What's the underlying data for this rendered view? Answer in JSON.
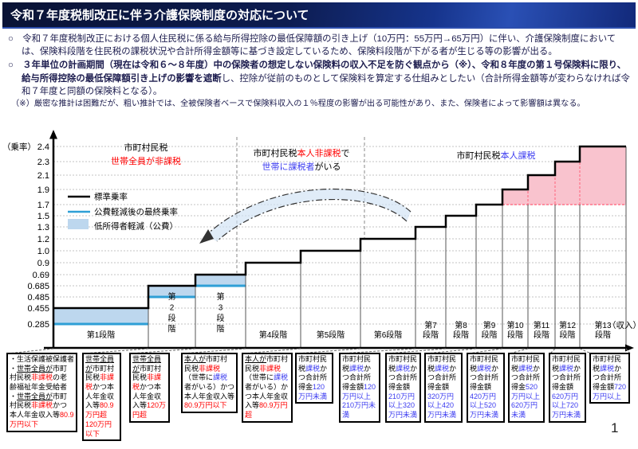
{
  "header": {
    "title": "令和７年度税制改正に伴う介護保険制度の対応について"
  },
  "intro": {
    "bullets": [
      {
        "marker": "○",
        "segments": [
          {
            "t": "令和７年度税制改正における個人住民税に係る給与所得控除の最低保障額の引き上げ（10万円：55万円→65万円）に伴い、介護保険制度においては、保険料段階を住民税の課税状況や合計所得金額等に基づき設定しているため、保険料段階が下がる者が生じる等の影響が出る。",
            "b": false
          }
        ]
      },
      {
        "marker": "○",
        "segments": [
          {
            "t": "３年単位の計画期間（現在は令和６～８年度）中の保険者の想定しない保険料の収入不足を防ぐ観点から（※）、令和８年度の第１号保険料に限り、給与所得控除の最低保障額引き上げの影響を遮断",
            "b": true
          },
          {
            "t": "し、控除が従前のものとして保険料を算定する仕組みとしたい（合計所得金額等が変わらなければ令和７年度と同額の保険料となる）。",
            "b": false
          }
        ]
      }
    ],
    "note": "（※）厳密な推計は困難だが、粗い推計では、全被保険者ベースで保険料収入の１％程度の影響が出る可能性があり、また、保険者によって影響額は異なる。"
  },
  "chart_data": {
    "type": "step",
    "y_axis_label": "（乗率）",
    "x_axis_label": "（収入）",
    "y_ticks": [
      "2.4",
      "2.3",
      "2.1",
      "1.9",
      "1.7",
      "1.5",
      "1.3",
      "1.2",
      "1.0",
      "0.9",
      "0.69",
      "0.685",
      "0.485",
      "0.455",
      "0.285"
    ],
    "legend": [
      {
        "label": "標準乗率",
        "swatch": "black-line"
      },
      {
        "label": "公費軽減後の最終乗率",
        "swatch": "blue-line"
      },
      {
        "label": "低所得者軽減（公費）",
        "swatch": "blue-fill"
      }
    ],
    "zones": [
      {
        "line1": [
          {
            "t": "市町村民税",
            "c": "k"
          }
        ],
        "line2": [
          {
            "t": "世帯全員が非課税",
            "c": "r"
          }
        ]
      },
      {
        "line1": [
          {
            "t": "市町村民税",
            "c": "k"
          },
          {
            "t": "本人非課税",
            "c": "r"
          },
          {
            "t": "で",
            "c": "k"
          }
        ],
        "line2": [
          {
            "t": "世帯に課税者",
            "c": "b"
          },
          {
            "t": "がいる",
            "c": "k"
          }
        ]
      },
      {
        "line1": [
          {
            "t": "市町村民税",
            "c": "k"
          },
          {
            "t": "本人課税",
            "c": "b"
          }
        ],
        "line2": []
      }
    ],
    "stages": [
      {
        "label": "第1段階",
        "standard_rate": "0.455",
        "reduced_rate": "0.285"
      },
      {
        "label": "第2段階",
        "standard_rate": "0.685",
        "reduced_rate": "0.485"
      },
      {
        "label": "第3段階",
        "standard_rate": "0.69",
        "reduced_rate": "0.685"
      },
      {
        "label": "第4段階",
        "standard_rate": "0.9"
      },
      {
        "label": "第5段階",
        "standard_rate": "1.0"
      },
      {
        "label": "第6段階",
        "standard_rate": "1.2"
      },
      {
        "label": "第7段階",
        "standard_rate": "1.3"
      },
      {
        "label": "第8段階",
        "standard_rate": "1.5"
      },
      {
        "label": "第9段階",
        "standard_rate": "1.7"
      },
      {
        "label": "第10段階",
        "standard_rate": "1.9",
        "highlighted": true
      },
      {
        "label": "第11段階",
        "standard_rate": "2.1",
        "highlighted": true
      },
      {
        "label": "第12段階",
        "standard_rate": "2.3",
        "highlighted": true
      },
      {
        "label": "第13段階",
        "standard_rate": "2.4",
        "highlighted": true
      }
    ],
    "colors": {
      "standard_line": "#000000",
      "reduced_line": "#2e9fd6",
      "reduction_fill": "#bdd7ee",
      "highlight_fill": "#f9c3ce",
      "highlight_dash": "#ff7388",
      "red_text": "#ff0000",
      "blue_text": "#3a3af0"
    }
  },
  "stage_boxes": [
    {
      "items": [
        [
          {
            "t": "・生活保護被保護者",
            "c": "k"
          }
        ],
        [
          {
            "t": "・",
            "c": "k"
          },
          {
            "t": "世帯全員が",
            "c": "u"
          },
          {
            "t": "市町村民税",
            "c": "k"
          },
          {
            "t": "非課税",
            "c": "r"
          },
          {
            "t": "の老齢福祉年金受給者",
            "c": "k"
          }
        ],
        [
          {
            "t": "・",
            "c": "k"
          },
          {
            "t": "世帯全員が",
            "c": "u"
          },
          {
            "t": "市町村民税",
            "c": "k"
          },
          {
            "t": "非課税",
            "c": "r"
          },
          {
            "t": "かつ本人年金収入等",
            "c": "k"
          },
          {
            "t": "80.9万円以下",
            "c": "r"
          }
        ]
      ]
    },
    {
      "items": [
        [
          {
            "t": "世帯全員が",
            "c": "u"
          },
          {
            "t": "市町村民税",
            "c": "k"
          },
          {
            "t": "非課税",
            "c": "r"
          },
          {
            "t": "かつ本人年金収入等",
            "c": "k"
          },
          {
            "t": "80.9万円超120万円以下",
            "c": "r"
          }
        ]
      ]
    },
    {
      "items": [
        [
          {
            "t": "世帯全員が",
            "c": "u"
          },
          {
            "t": "市町村民税",
            "c": "k"
          },
          {
            "t": "非課税",
            "c": "r"
          },
          {
            "t": "かつ本人年金収入等",
            "c": "k"
          },
          {
            "t": "120万円超",
            "c": "r"
          }
        ]
      ]
    },
    {
      "items": [
        [
          {
            "t": "本人が",
            "c": "u"
          },
          {
            "t": "市町村民税",
            "c": "k"
          },
          {
            "t": "非課税",
            "c": "r"
          },
          {
            "t": "（世帯に",
            "c": "k"
          },
          {
            "t": "課税",
            "c": "b"
          },
          {
            "t": "者がいる）かつ本人年金収入等",
            "c": "k"
          },
          {
            "t": "80.9万円以下",
            "c": "r"
          }
        ]
      ]
    },
    {
      "items": [
        [
          {
            "t": "本人が",
            "c": "u"
          },
          {
            "t": "市町村民税",
            "c": "k"
          },
          {
            "t": "非課税",
            "c": "r"
          },
          {
            "t": "（世帯に",
            "c": "k"
          },
          {
            "t": "課税",
            "c": "b"
          },
          {
            "t": "者がいる）かつ本人年金収入等",
            "c": "k"
          },
          {
            "t": "80.9万円超",
            "c": "r"
          }
        ]
      ]
    },
    {
      "items": [
        [
          {
            "t": "市町村民税",
            "c": "k"
          },
          {
            "t": "課税",
            "c": "b"
          },
          {
            "t": "かつ合計所得金",
            "c": "k"
          },
          {
            "t": "120万円未満",
            "c": "b"
          }
        ]
      ]
    },
    {
      "items": [
        [
          {
            "t": "市町村民税",
            "c": "k"
          },
          {
            "t": "課税",
            "c": "b"
          },
          {
            "t": "かつ合計所得金額",
            "c": "k"
          },
          {
            "t": "120万円以上210万円未満",
            "c": "b"
          }
        ]
      ]
    },
    {
      "items": [
        [
          {
            "t": "市町村民税",
            "c": "k"
          },
          {
            "t": "課税",
            "c": "b"
          },
          {
            "t": "かつ合計所得金額",
            "c": "k"
          },
          {
            "t": "210万円以上320万円未満",
            "c": "b"
          }
        ]
      ]
    },
    {
      "items": [
        [
          {
            "t": "市町村民税",
            "c": "k"
          },
          {
            "t": "課税",
            "c": "b"
          },
          {
            "t": "かつ合計所得金額",
            "c": "k"
          },
          {
            "t": "320万円以上420万円未満",
            "c": "b"
          }
        ]
      ]
    },
    {
      "items": [
        [
          {
            "t": "市町村民税",
            "c": "k"
          },
          {
            "t": "課税",
            "c": "b"
          },
          {
            "t": "かつ合計所得金額",
            "c": "k"
          },
          {
            "t": "420万円以上520万円未満",
            "c": "b"
          }
        ]
      ]
    },
    {
      "items": [
        [
          {
            "t": "市町村民税",
            "c": "k"
          },
          {
            "t": "課税",
            "c": "b"
          },
          {
            "t": "かつ合計所得金",
            "c": "k"
          },
          {
            "t": "520万円以上620万円未満",
            "c": "b"
          }
        ]
      ]
    },
    {
      "items": [
        [
          {
            "t": "市町村民税",
            "c": "k"
          },
          {
            "t": "課税",
            "c": "b"
          },
          {
            "t": "かつ合計所得金額",
            "c": "k"
          },
          {
            "t": "620万円以上720万円未満",
            "c": "b"
          }
        ]
      ]
    },
    {
      "items": [
        [
          {
            "t": "市町村民税",
            "c": "k"
          },
          {
            "t": "課税",
            "c": "b"
          },
          {
            "t": "かつ合計所得金額",
            "c": "k"
          },
          {
            "t": "720万円以上",
            "c": "b"
          }
        ]
      ]
    }
  ],
  "page_number": "1"
}
